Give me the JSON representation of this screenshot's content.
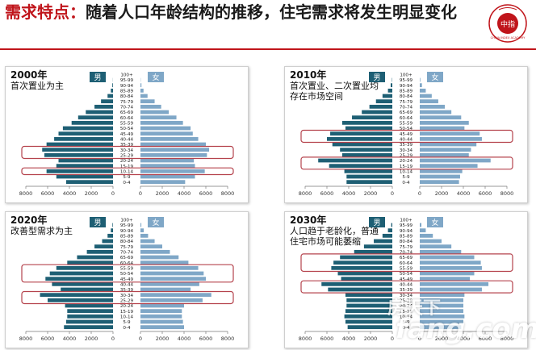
{
  "slide": {
    "title_lead": "需求特点：",
    "title_main": "随着人口年龄结构的推移，住宅需求将发生明显变化",
    "seal_text": "CHINA INDEX ACADEMY",
    "seal_inner": "中指"
  },
  "watermark": {
    "cn": "房天下",
    "en": "fang.com"
  },
  "colors": {
    "male": "#1e5f74",
    "female": "#7fa7c7",
    "highlight": "#b5434d",
    "title_red": "#c0151b"
  },
  "chart_data": [
    {
      "type": "bar",
      "subtype": "population-pyramid",
      "year": "2000年",
      "note": "首次置业为主",
      "legend": {
        "male": "男",
        "female": "女"
      },
      "age_groups": [
        "100+",
        "95-99",
        "90-94",
        "85-89",
        "80-84",
        "75-79",
        "70-74",
        "65-69",
        "60-64",
        "55-59",
        "50-54",
        "45-49",
        "40-44",
        "35-39",
        "30-34",
        "25-29",
        "20-24",
        "15-19",
        "10-14",
        "5-9",
        "0-4"
      ],
      "male": [
        0,
        10,
        60,
        200,
        500,
        1100,
        1700,
        2500,
        3200,
        3800,
        4600,
        5000,
        5400,
        6100,
        6500,
        6300,
        5000,
        5200,
        6100,
        5200,
        4300
      ],
      "female": [
        0,
        20,
        90,
        280,
        650,
        1300,
        1900,
        2600,
        3300,
        3900,
        4600,
        4800,
        5300,
        6000,
        6300,
        6100,
        4900,
        5000,
        5900,
        5000,
        4100
      ],
      "x_ticks": [
        "8000",
        "6000",
        "4000",
        "2000",
        "0",
        "2000",
        "4000",
        "6000",
        "8000"
      ],
      "xlim": [
        -8000,
        8000
      ],
      "highlight_ranges": [
        [
          "30-34",
          "25-29"
        ],
        [
          "10-14",
          "10-14"
        ]
      ]
    },
    {
      "type": "bar",
      "subtype": "population-pyramid",
      "year": "2010年",
      "note": "首次置业、二次置业均存在市场空间",
      "legend": {
        "male": "男",
        "female": "女"
      },
      "age_groups": [
        "100+",
        "95-99",
        "90-94",
        "85-89",
        "80-84",
        "75-79",
        "70-74",
        "65-69",
        "60-64",
        "55-59",
        "50-54",
        "45-49",
        "40-44",
        "35-39",
        "30-34",
        "25-29",
        "20-24",
        "15-19",
        "10-14",
        "5-9",
        "0-4"
      ],
      "male": [
        0,
        30,
        150,
        400,
        900,
        1500,
        2100,
        2800,
        3700,
        4600,
        4300,
        5700,
        6000,
        5500,
        4800,
        4600,
        6800,
        5800,
        4400,
        4200,
        4200
      ],
      "female": [
        0,
        50,
        200,
        550,
        1100,
        1700,
        2300,
        2900,
        3800,
        4500,
        4100,
        5500,
        5700,
        5200,
        4700,
        4500,
        6500,
        5300,
        3900,
        3700,
        3600
      ],
      "x_ticks": [
        "8000",
        "6000",
        "4000",
        "2000",
        "0",
        "2000",
        "4000",
        "6000",
        "8000"
      ],
      "xlim": [
        -8000,
        8000
      ],
      "highlight_ranges": [
        [
          "45-49",
          "40-44"
        ],
        [
          "20-24",
          "15-19"
        ]
      ]
    },
    {
      "type": "bar",
      "subtype": "population-pyramid",
      "year": "2020年",
      "note": "改善型需求为主",
      "legend": {
        "male": "男",
        "female": "女"
      },
      "age_groups": [
        "100+",
        "95-99",
        "90-94",
        "85-89",
        "80-84",
        "75-79",
        "70-74",
        "65-69",
        "60-64",
        "55-59",
        "50-54",
        "45-49",
        "40-44",
        "35-39",
        "30-34",
        "25-29",
        "20-24",
        "15-19",
        "10-14",
        "5-9",
        "0-4"
      ],
      "male": [
        0,
        50,
        200,
        500,
        1000,
        1700,
        2400,
        3300,
        4200,
        5200,
        5800,
        6200,
        5600,
        4800,
        6700,
        6000,
        4400,
        4200,
        4200,
        4300,
        4500
      ],
      "female": [
        0,
        80,
        300,
        700,
        1300,
        2000,
        2700,
        3500,
        4400,
        5300,
        5800,
        6000,
        5400,
        4600,
        6500,
        5700,
        4000,
        3800,
        3800,
        3900,
        4000
      ],
      "x_ticks": [
        "8000",
        "6000",
        "4000",
        "2000",
        "0",
        "2000",
        "4000",
        "6000",
        "8000"
      ],
      "xlim": [
        -8000,
        8000
      ],
      "highlight_ranges": [
        [
          "55-59",
          "45-49"
        ],
        [
          "30-34",
          "25-29"
        ]
      ]
    },
    {
      "type": "bar",
      "subtype": "population-pyramid",
      "year": "2030年",
      "note": "人口趋于老龄化，普通住宅市场可能萎缩",
      "legend": {
        "male": "男",
        "female": "女"
      },
      "age_groups": [
        "100+",
        "95-99",
        "90-94",
        "85-89",
        "80-84",
        "75-79",
        "70-74",
        "65-69",
        "60-64",
        "55-59",
        "50-54",
        "45-49",
        "40-44",
        "35-39",
        "30-34",
        "25-29",
        "20-24",
        "15-19",
        "10-14",
        "5-9",
        "0-4"
      ],
      "male": [
        0,
        100,
        400,
        900,
        1700,
        2600,
        3500,
        4800,
        5400,
        5600,
        5000,
        4700,
        6500,
        5900,
        4300,
        4200,
        4200,
        4300,
        4400,
        4300,
        4100
      ],
      "female": [
        0,
        150,
        550,
        1200,
        2000,
        2900,
        3800,
        5000,
        5600,
        5700,
        5000,
        4600,
        6300,
        5700,
        4100,
        4000,
        4000,
        4000,
        4100,
        4000,
        3800
      ],
      "x_ticks": [
        "8000",
        "6000",
        "4000",
        "2000",
        "0",
        "2000",
        "4000",
        "6000",
        "8000"
      ],
      "xlim": [
        -8000,
        8000
      ],
      "highlight_ranges": [
        [
          "65-69",
          "55-59"
        ],
        [
          "40-44",
          "35-39"
        ]
      ]
    }
  ]
}
